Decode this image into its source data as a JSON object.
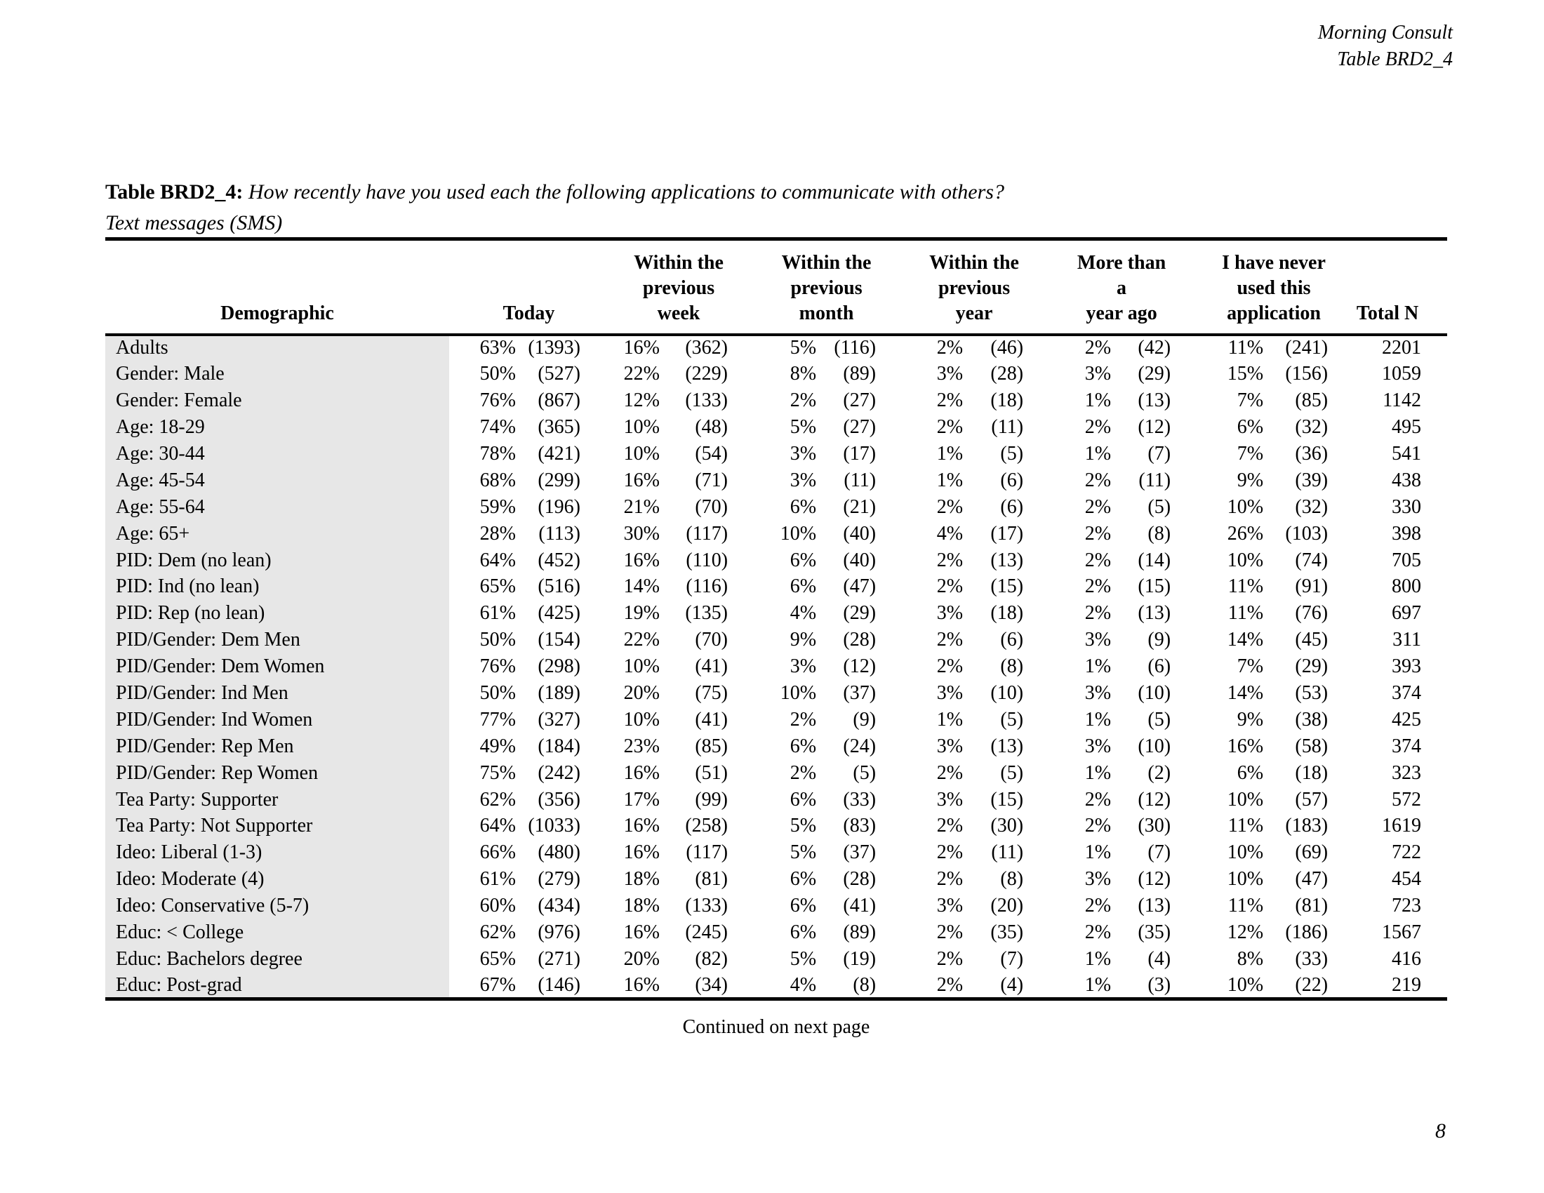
{
  "page_header": {
    "brand": "Morning Consult",
    "table_ref": "Table BRD2_4"
  },
  "table": {
    "title_label": "Table BRD2_4:",
    "title_question": "How recently have you used each the following applications to communicate with others?",
    "subtitle": "Text messages (SMS)",
    "headers": {
      "demographic": [
        "Demographic"
      ],
      "today": [
        "Today"
      ],
      "week": [
        "Within the",
        "previous",
        "week"
      ],
      "month": [
        "Within the",
        "previous",
        "month"
      ],
      "year": [
        "Within the",
        "previous year"
      ],
      "more_than_year": [
        "More than a",
        "year ago"
      ],
      "never": [
        "I have never",
        "used this",
        "application"
      ],
      "total": [
        "Total N"
      ]
    },
    "rows": [
      {
        "demographic": "Adults",
        "values": [
          "63%",
          "(1393)",
          "16%",
          "(362)",
          "5%",
          "(116)",
          "2%",
          "(46)",
          "2%",
          "(42)",
          "11%",
          "(241)"
        ],
        "total_n": "2201"
      },
      {
        "demographic": "Gender: Male",
        "values": [
          "50%",
          "(527)",
          "22%",
          "(229)",
          "8%",
          "(89)",
          "3%",
          "(28)",
          "3%",
          "(29)",
          "15%",
          "(156)"
        ],
        "total_n": "1059"
      },
      {
        "demographic": "Gender: Female",
        "values": [
          "76%",
          "(867)",
          "12%",
          "(133)",
          "2%",
          "(27)",
          "2%",
          "(18)",
          "1%",
          "(13)",
          "7%",
          "(85)"
        ],
        "total_n": "1142"
      },
      {
        "demographic": "Age: 18-29",
        "values": [
          "74%",
          "(365)",
          "10%",
          "(48)",
          "5%",
          "(27)",
          "2%",
          "(11)",
          "2%",
          "(12)",
          "6%",
          "(32)"
        ],
        "total_n": "495"
      },
      {
        "demographic": "Age: 30-44",
        "values": [
          "78%",
          "(421)",
          "10%",
          "(54)",
          "3%",
          "(17)",
          "1%",
          "(5)",
          "1%",
          "(7)",
          "7%",
          "(36)"
        ],
        "total_n": "541"
      },
      {
        "demographic": "Age: 45-54",
        "values": [
          "68%",
          "(299)",
          "16%",
          "(71)",
          "3%",
          "(11)",
          "1%",
          "(6)",
          "2%",
          "(11)",
          "9%",
          "(39)"
        ],
        "total_n": "438"
      },
      {
        "demographic": "Age: 55-64",
        "values": [
          "59%",
          "(196)",
          "21%",
          "(70)",
          "6%",
          "(21)",
          "2%",
          "(6)",
          "2%",
          "(5)",
          "10%",
          "(32)"
        ],
        "total_n": "330"
      },
      {
        "demographic": "Age: 65+",
        "values": [
          "28%",
          "(113)",
          "30%",
          "(117)",
          "10%",
          "(40)",
          "4%",
          "(17)",
          "2%",
          "(8)",
          "26%",
          "(103)"
        ],
        "total_n": "398"
      },
      {
        "demographic": "PID: Dem (no lean)",
        "values": [
          "64%",
          "(452)",
          "16%",
          "(110)",
          "6%",
          "(40)",
          "2%",
          "(13)",
          "2%",
          "(14)",
          "10%",
          "(74)"
        ],
        "total_n": "705"
      },
      {
        "demographic": "PID: Ind (no lean)",
        "values": [
          "65%",
          "(516)",
          "14%",
          "(116)",
          "6%",
          "(47)",
          "2%",
          "(15)",
          "2%",
          "(15)",
          "11%",
          "(91)"
        ],
        "total_n": "800"
      },
      {
        "demographic": "PID: Rep (no lean)",
        "values": [
          "61%",
          "(425)",
          "19%",
          "(135)",
          "4%",
          "(29)",
          "3%",
          "(18)",
          "2%",
          "(13)",
          "11%",
          "(76)"
        ],
        "total_n": "697"
      },
      {
        "demographic": "PID/Gender: Dem Men",
        "values": [
          "50%",
          "(154)",
          "22%",
          "(70)",
          "9%",
          "(28)",
          "2%",
          "(6)",
          "3%",
          "(9)",
          "14%",
          "(45)"
        ],
        "total_n": "311"
      },
      {
        "demographic": "PID/Gender: Dem Women",
        "values": [
          "76%",
          "(298)",
          "10%",
          "(41)",
          "3%",
          "(12)",
          "2%",
          "(8)",
          "1%",
          "(6)",
          "7%",
          "(29)"
        ],
        "total_n": "393"
      },
      {
        "demographic": "PID/Gender: Ind Men",
        "values": [
          "50%",
          "(189)",
          "20%",
          "(75)",
          "10%",
          "(37)",
          "3%",
          "(10)",
          "3%",
          "(10)",
          "14%",
          "(53)"
        ],
        "total_n": "374"
      },
      {
        "demographic": "PID/Gender: Ind Women",
        "values": [
          "77%",
          "(327)",
          "10%",
          "(41)",
          "2%",
          "(9)",
          "1%",
          "(5)",
          "1%",
          "(5)",
          "9%",
          "(38)"
        ],
        "total_n": "425"
      },
      {
        "demographic": "PID/Gender: Rep Men",
        "values": [
          "49%",
          "(184)",
          "23%",
          "(85)",
          "6%",
          "(24)",
          "3%",
          "(13)",
          "3%",
          "(10)",
          "16%",
          "(58)"
        ],
        "total_n": "374"
      },
      {
        "demographic": "PID/Gender: Rep Women",
        "values": [
          "75%",
          "(242)",
          "16%",
          "(51)",
          "2%",
          "(5)",
          "2%",
          "(5)",
          "1%",
          "(2)",
          "6%",
          "(18)"
        ],
        "total_n": "323"
      },
      {
        "demographic": "Tea Party: Supporter",
        "values": [
          "62%",
          "(356)",
          "17%",
          "(99)",
          "6%",
          "(33)",
          "3%",
          "(15)",
          "2%",
          "(12)",
          "10%",
          "(57)"
        ],
        "total_n": "572"
      },
      {
        "demographic": "Tea Party: Not Supporter",
        "values": [
          "64%",
          "(1033)",
          "16%",
          "(258)",
          "5%",
          "(83)",
          "2%",
          "(30)",
          "2%",
          "(30)",
          "11%",
          "(183)"
        ],
        "total_n": "1619"
      },
      {
        "demographic": "Ideo: Liberal (1-3)",
        "values": [
          "66%",
          "(480)",
          "16%",
          "(117)",
          "5%",
          "(37)",
          "2%",
          "(11)",
          "1%",
          "(7)",
          "10%",
          "(69)"
        ],
        "total_n": "722"
      },
      {
        "demographic": "Ideo: Moderate (4)",
        "values": [
          "61%",
          "(279)",
          "18%",
          "(81)",
          "6%",
          "(28)",
          "2%",
          "(8)",
          "3%",
          "(12)",
          "10%",
          "(47)"
        ],
        "total_n": "454"
      },
      {
        "demographic": "Ideo: Conservative (5-7)",
        "values": [
          "60%",
          "(434)",
          "18%",
          "(133)",
          "6%",
          "(41)",
          "3%",
          "(20)",
          "2%",
          "(13)",
          "11%",
          "(81)"
        ],
        "total_n": "723"
      },
      {
        "demographic": "Educ: < College",
        "values": [
          "62%",
          "(976)",
          "16%",
          "(245)",
          "6%",
          "(89)",
          "2%",
          "(35)",
          "2%",
          "(35)",
          "12%",
          "(186)"
        ],
        "total_n": "1567"
      },
      {
        "demographic": "Educ: Bachelors degree",
        "values": [
          "65%",
          "(271)",
          "20%",
          "(82)",
          "5%",
          "(19)",
          "2%",
          "(7)",
          "1%",
          "(4)",
          "8%",
          "(33)"
        ],
        "total_n": "416"
      },
      {
        "demographic": "Educ: Post-grad",
        "values": [
          "67%",
          "(146)",
          "16%",
          "(34)",
          "4%",
          "(8)",
          "2%",
          "(4)",
          "1%",
          "(3)",
          "10%",
          "(22)"
        ],
        "total_n": "219"
      }
    ]
  },
  "footer": {
    "continued_note": "Continued on next page",
    "page_number": "8"
  }
}
